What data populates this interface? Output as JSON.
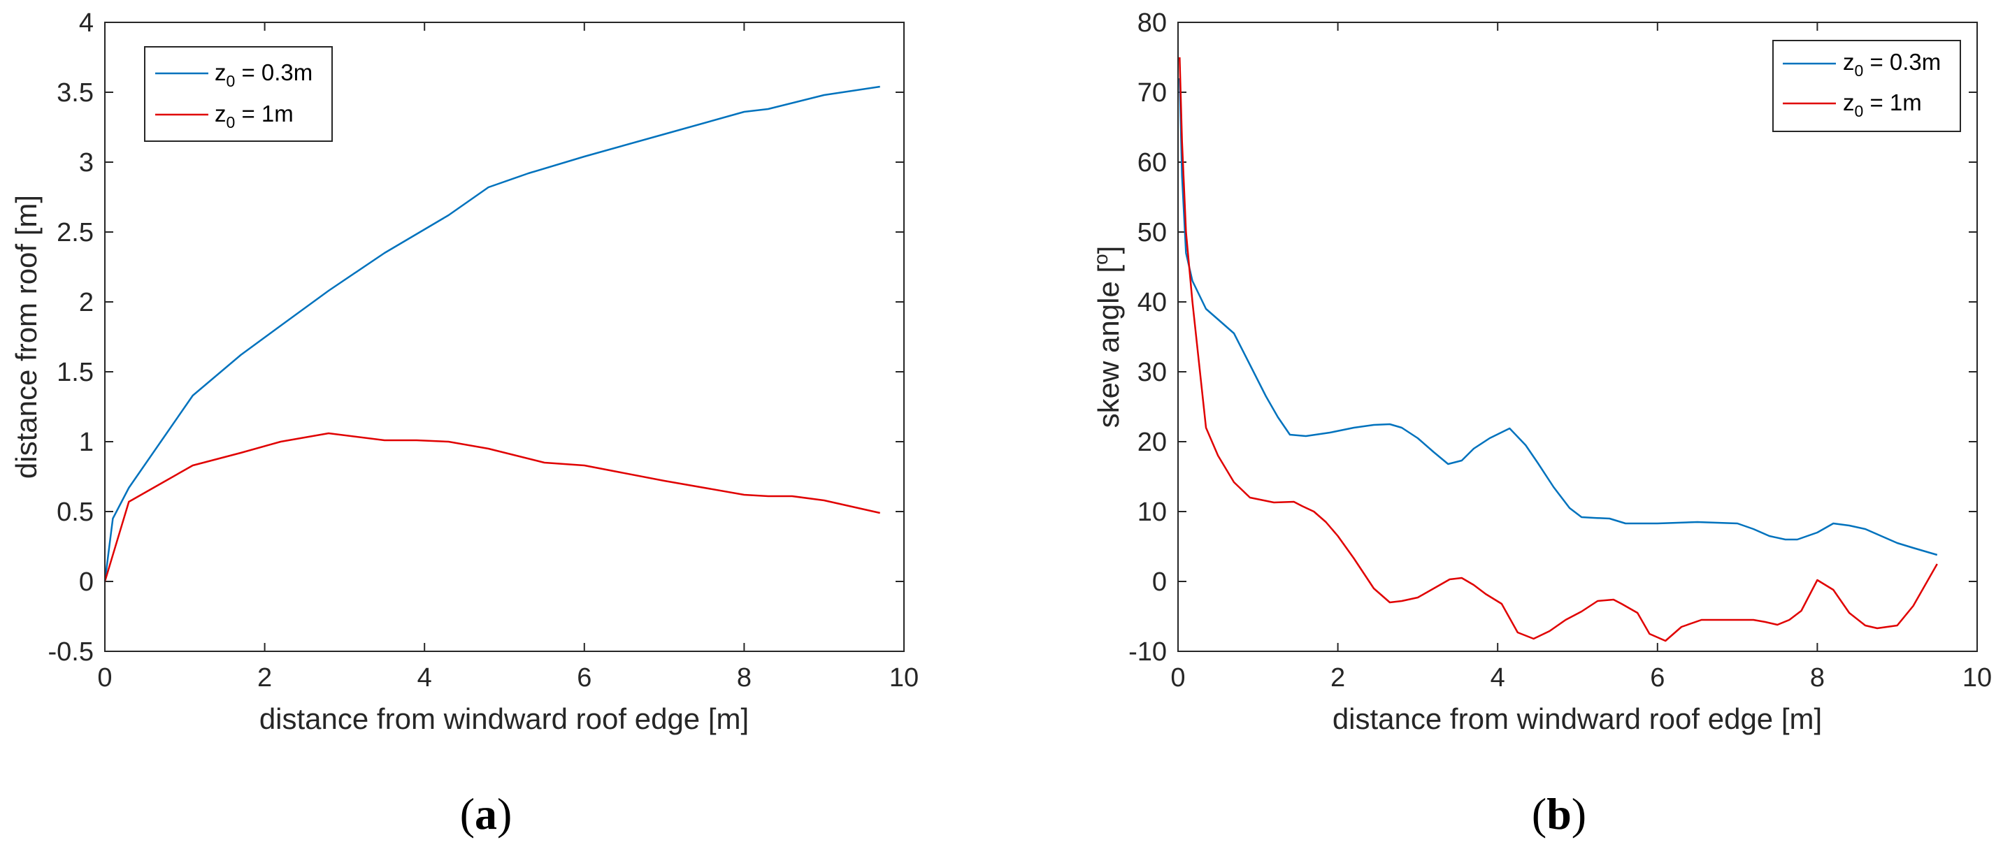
{
  "chart_data": [
    {
      "type": "line",
      "caption": "(a)",
      "caption_letter": "a",
      "xlabel": "distance from windward roof edge [m]",
      "ylabel": "distance from roof [m]",
      "ylabel_superscript": "",
      "ylabel_suffix": "",
      "xlim": [
        0,
        10
      ],
      "ylim": [
        -0.5,
        4
      ],
      "xticks": [
        "0",
        "2",
        "4",
        "6",
        "8",
        "10"
      ],
      "yticks": [
        "-0.5",
        "0",
        "0.5",
        "1",
        "1.5",
        "2",
        "2.5",
        "3",
        "3.5",
        "4"
      ],
      "legend_position": "top-left",
      "series": [
        {
          "name": "z0 = 0.3m",
          "label_main": "z",
          "label_sub": "0",
          "label_rest": " = 0.3m",
          "color": "#0072BD",
          "x": [
            0,
            0.1,
            0.3,
            0.7,
            1.1,
            1.7,
            2.2,
            2.8,
            3.5,
            4.3,
            4.8,
            5.3,
            6.0,
            7.0,
            8.0,
            8.3,
            9.0,
            9.7
          ],
          "y": [
            0,
            0.45,
            0.67,
            1.0,
            1.33,
            1.62,
            1.83,
            2.08,
            2.35,
            2.62,
            2.82,
            2.92,
            3.04,
            3.2,
            3.36,
            3.38,
            3.48,
            3.54
          ]
        },
        {
          "name": "z0 = 1m",
          "label_main": "z",
          "label_sub": "0",
          "label_rest": " = 1m",
          "color": "#E00000",
          "x": [
            0,
            0.3,
            0.7,
            1.1,
            1.7,
            2.2,
            2.8,
            3.5,
            3.9,
            4.3,
            4.8,
            5.5,
            6.0,
            7.0,
            8.0,
            8.3,
            8.6,
            9.0,
            9.7
          ],
          "y": [
            0,
            0.57,
            0.7,
            0.83,
            0.92,
            1.0,
            1.06,
            1.01,
            1.01,
            1.0,
            0.95,
            0.85,
            0.83,
            0.72,
            0.62,
            0.61,
            0.61,
            0.58,
            0.49
          ]
        }
      ]
    },
    {
      "type": "line",
      "caption": "(b)",
      "caption_letter": "b",
      "xlabel": "distance from windward roof edge [m]",
      "ylabel": "skew angle [",
      "ylabel_superscript": "o",
      "ylabel_suffix": "]",
      "xlim": [
        0,
        10
      ],
      "ylim": [
        -10,
        80
      ],
      "xticks": [
        "0",
        "2",
        "4",
        "6",
        "8",
        "10"
      ],
      "yticks": [
        "-10",
        "0",
        "10",
        "20",
        "30",
        "40",
        "50",
        "60",
        "70",
        "80"
      ],
      "legend_position": "top-right",
      "series": [
        {
          "name": "z0 = 0.3m",
          "label_main": "z",
          "label_sub": "0",
          "label_rest": " = 0.3m",
          "color": "#0072BD",
          "x": [
            0.02,
            0.05,
            0.1,
            0.18,
            0.35,
            0.5,
            0.7,
            0.9,
            1.1,
            1.25,
            1.4,
            1.6,
            1.9,
            2.2,
            2.45,
            2.65,
            2.8,
            3.0,
            3.2,
            3.38,
            3.55,
            3.7,
            3.9,
            4.15,
            4.35,
            4.5,
            4.7,
            4.9,
            5.05,
            5.2,
            5.4,
            5.6,
            6.0,
            6.5,
            7.0,
            7.2,
            7.4,
            7.6,
            7.75,
            8.0,
            8.2,
            8.4,
            8.6,
            8.8,
            9.0,
            9.2,
            9.5
          ],
          "y": [
            72,
            58,
            47,
            43,
            39,
            37.5,
            35.5,
            31,
            26.5,
            23.5,
            21,
            20.8,
            21.3,
            22,
            22.4,
            22.5,
            22,
            20.5,
            18.5,
            16.8,
            17.3,
            19,
            20.5,
            21.9,
            19.5,
            17,
            13.5,
            10.5,
            9.2,
            9.1,
            9.0,
            8.3,
            8.3,
            8.5,
            8.3,
            7.5,
            6.5,
            6.0,
            6.0,
            7.0,
            8.3,
            8.0,
            7.5,
            6.5,
            5.5,
            4.8,
            3.8
          ]
        },
        {
          "name": "z0 = 1m",
          "label_main": "z",
          "label_sub": "0",
          "label_rest": " = 1m",
          "color": "#E00000",
          "x": [
            0.02,
            0.05,
            0.1,
            0.18,
            0.35,
            0.5,
            0.7,
            0.9,
            1.2,
            1.45,
            1.55,
            1.7,
            1.85,
            2.0,
            2.2,
            2.45,
            2.65,
            2.8,
            3.0,
            3.2,
            3.4,
            3.55,
            3.7,
            3.85,
            4.05,
            4.25,
            4.45,
            4.65,
            4.85,
            5.05,
            5.25,
            5.45,
            5.55,
            5.75,
            5.9,
            6.1,
            6.3,
            6.55,
            7.0,
            7.2,
            7.35,
            7.5,
            7.65,
            7.8,
            8.0,
            8.2,
            8.4,
            8.6,
            8.75,
            9.0,
            9.2,
            9.35,
            9.5
          ],
          "y": [
            75,
            63,
            50,
            40,
            22,
            18,
            14.2,
            12,
            11.3,
            11.4,
            10.8,
            10,
            8.5,
            6.5,
            3.3,
            -1,
            -3,
            -2.8,
            -2.3,
            -1,
            0.3,
            0.5,
            -0.5,
            -1.8,
            -3.2,
            -7.3,
            -8.2,
            -7.1,
            -5.5,
            -4.3,
            -2.8,
            -2.6,
            -3.2,
            -4.5,
            -7.5,
            -8.5,
            -6.5,
            -5.5,
            -5.5,
            -5.5,
            -5.8,
            -6.2,
            -5.5,
            -4.2,
            0.2,
            -1.2,
            -4.5,
            -6.3,
            -6.7,
            -6.3,
            -3.5,
            -0.5,
            2.5
          ]
        }
      ]
    }
  ]
}
